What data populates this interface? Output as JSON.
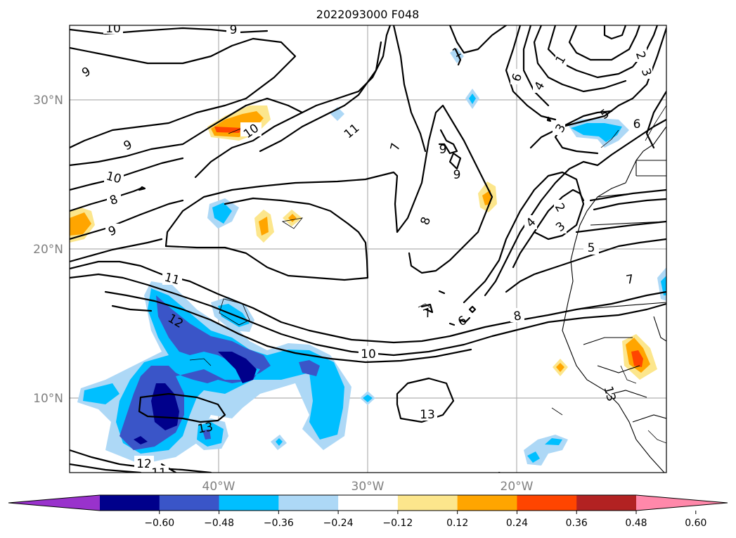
{
  "title": "2022093000 F048",
  "lat_labels": [
    "30°N",
    "20°N",
    "10°N"
  ],
  "lon_labels": [
    "40°W",
    "30°W",
    "20°W"
  ],
  "colorbar": {
    "colors": [
      "#9932cc",
      "#00008b",
      "#3a55c8",
      "#00bfff",
      "#add8f6",
      "#ffffff",
      "#fce68c",
      "#ffa500",
      "#ff4500",
      "#b22222",
      "#ff88aa"
    ],
    "tick_labels": [
      "−0.60",
      "−0.48",
      "−0.36",
      "−0.24",
      "−0.12",
      "0.12",
      "0.24",
      "0.36",
      "0.48",
      "0.60"
    ]
  },
  "contour_labels": [
    "10",
    "9",
    "9",
    "9",
    "10",
    "8",
    "9",
    "10",
    "11",
    "7",
    "9",
    "9",
    "8",
    "6",
    "4",
    "1",
    "2",
    "3",
    "6",
    "5",
    "3",
    "2",
    "4",
    "3",
    "5",
    "7",
    "8",
    "10",
    "11",
    "12",
    "13",
    "13",
    "12",
    "11",
    "7",
    "6",
    "13",
    "1"
  ]
}
